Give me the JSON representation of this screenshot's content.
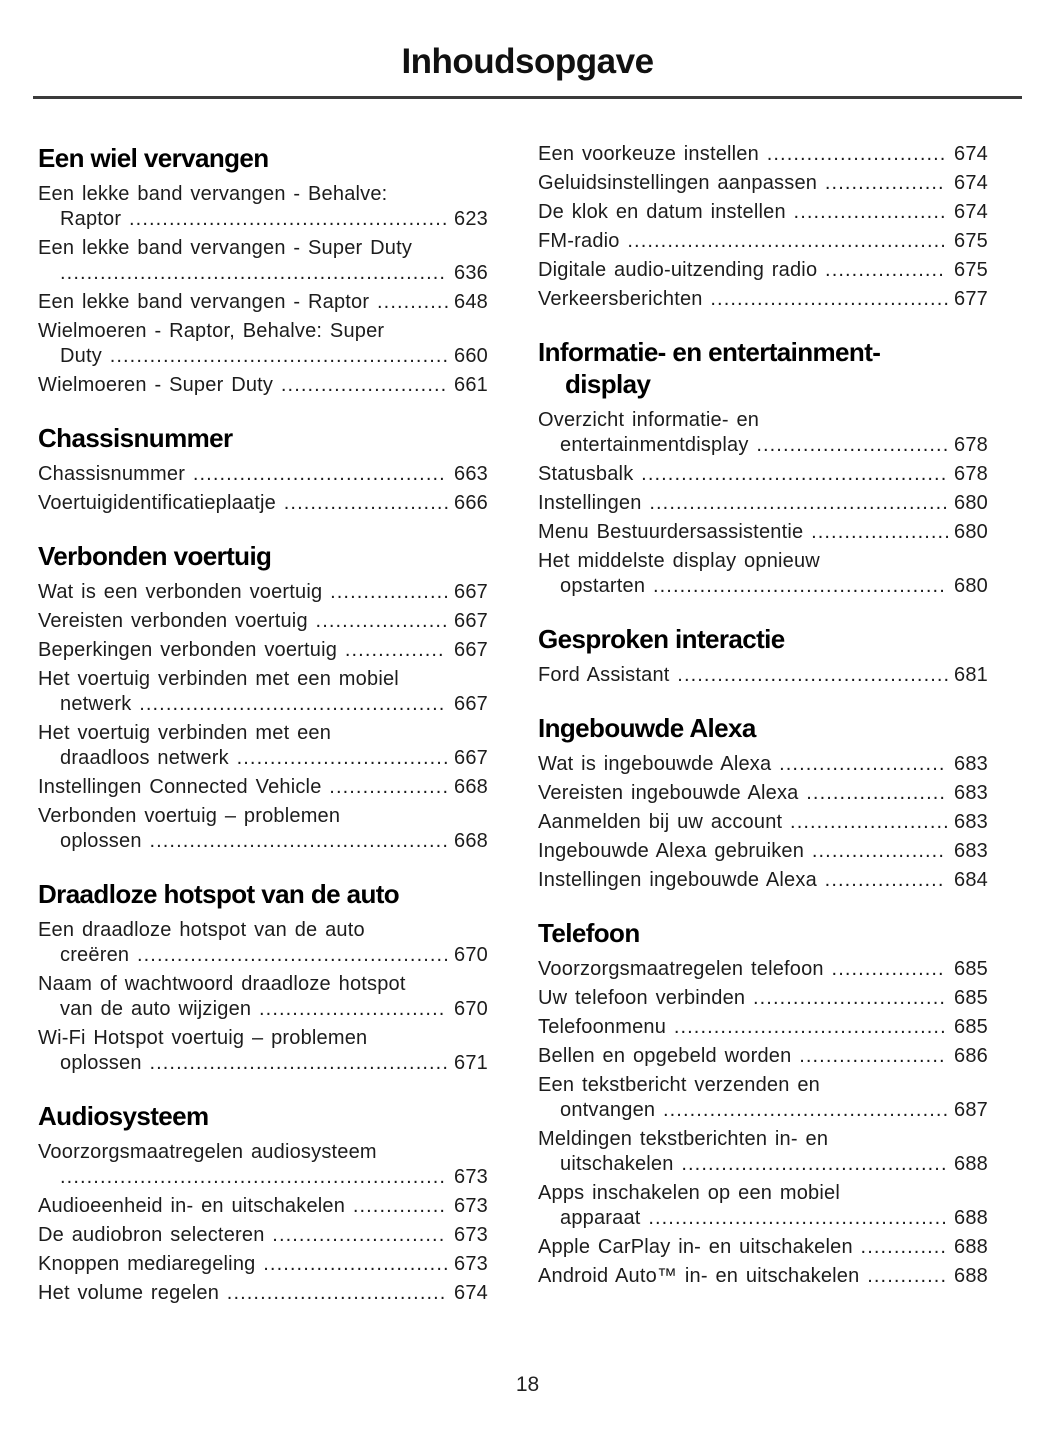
{
  "title": "Inhoudsopgave",
  "page_number": "18",
  "colors": {
    "heading": "#000000",
    "body_text": "#1c1c1c",
    "rule": "#3b3b3b"
  },
  "columns": [
    {
      "sections": [
        {
          "heading": "Een wiel vervangen",
          "entries": [
            {
              "label": "Een lekke band vervangen - Behalve:\nRaptor",
              "page": "623"
            },
            {
              "label": "Een lekke band vervangen - Super Duty\n",
              "page": "636"
            },
            {
              "label": "Een lekke band vervangen - Raptor",
              "page": "648"
            },
            {
              "label": "Wielmoeren - Raptor, Behalve: Super\nDuty",
              "page": "660"
            },
            {
              "label": "Wielmoeren - Super Duty",
              "page": "661"
            }
          ]
        },
        {
          "heading": "Chassisnummer",
          "entries": [
            {
              "label": "Chassisnummer",
              "page": "663"
            },
            {
              "label": "Voertuigidentificatieplaatje",
              "page": "666"
            }
          ]
        },
        {
          "heading": "Verbonden voertuig",
          "entries": [
            {
              "label": "Wat is een verbonden voertuig",
              "page": "667"
            },
            {
              "label": "Vereisten verbonden voertuig",
              "page": "667"
            },
            {
              "label": "Beperkingen verbonden voertuig",
              "page": "667"
            },
            {
              "label": "Het voertuig verbinden met een mobiel\nnetwerk",
              "page": "667"
            },
            {
              "label": "Het voertuig verbinden met een\ndraadloos netwerk",
              "page": "667"
            },
            {
              "label": "Instellingen Connected Vehicle",
              "page": "668"
            },
            {
              "label": "Verbonden voertuig – problemen\noplossen",
              "page": "668"
            }
          ]
        },
        {
          "heading": "Draadloze hotspot van de auto",
          "entries": [
            {
              "label": "Een draadloze hotspot van de auto\ncreëren",
              "page": "670"
            },
            {
              "label": "Naam of wachtwoord draadloze hotspot\nvan de auto wijzigen",
              "page": "670"
            },
            {
              "label": "Wi-Fi Hotspot voertuig – problemen\noplossen",
              "page": "671"
            }
          ]
        },
        {
          "heading": "Audiosysteem",
          "entries": [
            {
              "label": "Voorzorgsmaatregelen audiosysteem\n",
              "page": "673"
            },
            {
              "label": "Audioeenheid in- en uitschakelen",
              "page": "673"
            },
            {
              "label": "De audiobron selecteren",
              "page": "673"
            },
            {
              "label": "Knoppen mediaregeling",
              "page": "673"
            },
            {
              "label": "Het volume regelen",
              "page": "674"
            }
          ]
        }
      ]
    },
    {
      "sections": [
        {
          "heading": "",
          "entries": [
            {
              "label": "Een voorkeuze instellen",
              "page": "674"
            },
            {
              "label": "Geluidsinstellingen aanpassen",
              "page": "674"
            },
            {
              "label": "De klok en datum instellen",
              "page": "674"
            },
            {
              "label": "FM-radio",
              "page": "675"
            },
            {
              "label": "Digitale audio-uitzending radio",
              "page": "675"
            },
            {
              "label": "Verkeersberichten",
              "page": "677"
            }
          ]
        },
        {
          "heading": "Informatie- en entertainment-\ndisplay",
          "entries": [
            {
              "label": "Overzicht informatie- en\nentertainmentdisplay",
              "page": "678"
            },
            {
              "label": "Statusbalk",
              "page": "678"
            },
            {
              "label": "Instellingen",
              "page": "680"
            },
            {
              "label": "Menu Bestuurdersassistentie",
              "page": "680"
            },
            {
              "label": "Het middelste display opnieuw\nopstarten",
              "page": "680"
            }
          ]
        },
        {
          "heading": "Gesproken interactie",
          "entries": [
            {
              "label": "Ford Assistant",
              "page": "681"
            }
          ]
        },
        {
          "heading": "Ingebouwde Alexa",
          "entries": [
            {
              "label": "Wat is ingebouwde Alexa",
              "page": "683"
            },
            {
              "label": "Vereisten ingebouwde Alexa",
              "page": "683"
            },
            {
              "label": "Aanmelden bij uw account",
              "page": "683"
            },
            {
              "label": "Ingebouwde Alexa gebruiken",
              "page": "683"
            },
            {
              "label": "Instellingen ingebouwde Alexa",
              "page": "684"
            }
          ]
        },
        {
          "heading": "Telefoon",
          "entries": [
            {
              "label": "Voorzorgsmaatregelen telefoon",
              "page": "685"
            },
            {
              "label": "Uw telefoon verbinden",
              "page": "685"
            },
            {
              "label": "Telefoonmenu",
              "page": "685"
            },
            {
              "label": "Bellen en opgebeld worden",
              "page": "686"
            },
            {
              "label": "Een tekstbericht verzenden en\nontvangen",
              "page": "687"
            },
            {
              "label": "Meldingen tekstberichten in- en\nuitschakelen",
              "page": "688"
            },
            {
              "label": "Apps inschakelen op een mobiel\napparaat",
              "page": "688"
            },
            {
              "label": "Apple CarPlay in- en uitschakelen",
              "page": "688"
            },
            {
              "label": "Android Auto™ in- en uitschakelen",
              "page": "688"
            }
          ]
        }
      ]
    }
  ]
}
